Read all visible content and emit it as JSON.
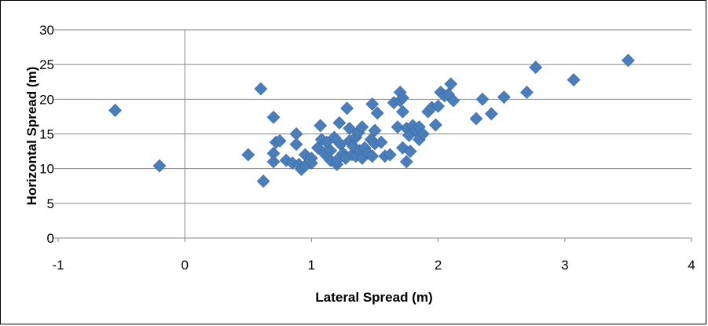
{
  "chart_data": {
    "type": "scatter",
    "title": "",
    "xlabel": "Lateral Spread (m)",
    "ylabel": "Horizontal Spread (m)",
    "xlim": [
      -1,
      4
    ],
    "ylim": [
      0,
      30
    ],
    "x_ticks": [
      "-1",
      "0",
      "1",
      "2",
      "3",
      "4"
    ],
    "y_ticks": [
      "0",
      "5",
      "10",
      "15",
      "20",
      "25",
      "30"
    ],
    "grid": "horizontal",
    "legend": "none",
    "marker": "diamond",
    "marker_color": "#4a7ebb",
    "series": [
      {
        "points": [
          [
            -0.55,
            18.4
          ],
          [
            -0.2,
            10.4
          ],
          [
            0.5,
            12.0
          ],
          [
            0.6,
            21.5
          ],
          [
            0.62,
            8.2
          ],
          [
            0.7,
            17.4
          ],
          [
            0.7,
            12.2
          ],
          [
            0.7,
            11.0
          ],
          [
            0.72,
            13.8
          ],
          [
            0.75,
            14.0
          ],
          [
            0.8,
            11.2
          ],
          [
            0.85,
            10.8
          ],
          [
            0.88,
            15.0
          ],
          [
            0.88,
            13.5
          ],
          [
            0.9,
            10.6
          ],
          [
            0.92,
            9.9
          ],
          [
            0.95,
            10.4
          ],
          [
            0.95,
            12.0
          ],
          [
            1.0,
            11.5
          ],
          [
            1.0,
            10.8
          ],
          [
            1.05,
            13.0
          ],
          [
            1.07,
            16.2
          ],
          [
            1.08,
            14.2
          ],
          [
            1.1,
            12.2
          ],
          [
            1.12,
            13.8
          ],
          [
            1.15,
            11.2
          ],
          [
            1.15,
            12.6
          ],
          [
            1.18,
            14.5
          ],
          [
            1.2,
            10.6
          ],
          [
            1.2,
            11.2
          ],
          [
            1.22,
            16.6
          ],
          [
            1.23,
            13.5
          ],
          [
            1.25,
            12.2
          ],
          [
            1.27,
            11.5
          ],
          [
            1.28,
            18.7
          ],
          [
            1.3,
            15.8
          ],
          [
            1.3,
            14.0
          ],
          [
            1.32,
            12.0
          ],
          [
            1.33,
            13.2
          ],
          [
            1.35,
            11.8
          ],
          [
            1.35,
            14.5
          ],
          [
            1.37,
            15.2
          ],
          [
            1.38,
            12.6
          ],
          [
            1.4,
            16.0
          ],
          [
            1.4,
            11.5
          ],
          [
            1.42,
            13.0
          ],
          [
            1.45,
            12.2
          ],
          [
            1.47,
            14.2
          ],
          [
            1.48,
            19.3
          ],
          [
            1.48,
            11.8
          ],
          [
            1.5,
            15.5
          ],
          [
            1.5,
            13.6
          ],
          [
            1.52,
            18.0
          ],
          [
            1.55,
            13.8
          ],
          [
            1.58,
            11.8
          ],
          [
            1.62,
            12.0
          ],
          [
            1.65,
            19.5
          ],
          [
            1.68,
            16.0
          ],
          [
            1.7,
            21.0
          ],
          [
            1.7,
            19.8
          ],
          [
            1.72,
            20.2
          ],
          [
            1.72,
            18.2
          ],
          [
            1.72,
            13.0
          ],
          [
            1.75,
            15.8
          ],
          [
            1.75,
            11.0
          ],
          [
            1.77,
            14.8
          ],
          [
            1.78,
            12.5
          ],
          [
            1.8,
            16.2
          ],
          [
            1.82,
            15.5
          ],
          [
            1.85,
            14.2
          ],
          [
            1.85,
            16.0
          ],
          [
            1.88,
            15.0
          ],
          [
            1.92,
            18.2
          ],
          [
            1.95,
            18.8
          ],
          [
            1.98,
            16.3
          ],
          [
            2.0,
            19.0
          ],
          [
            2.02,
            21.0
          ],
          [
            2.05,
            20.5
          ],
          [
            2.08,
            20.7
          ],
          [
            2.1,
            22.2
          ],
          [
            2.12,
            19.8
          ],
          [
            2.3,
            17.2
          ],
          [
            2.35,
            20.0
          ],
          [
            2.42,
            17.9
          ],
          [
            2.52,
            20.3
          ],
          [
            2.7,
            21.0
          ],
          [
            2.77,
            24.6
          ],
          [
            3.07,
            22.8
          ],
          [
            3.5,
            25.6
          ]
        ]
      }
    ]
  }
}
